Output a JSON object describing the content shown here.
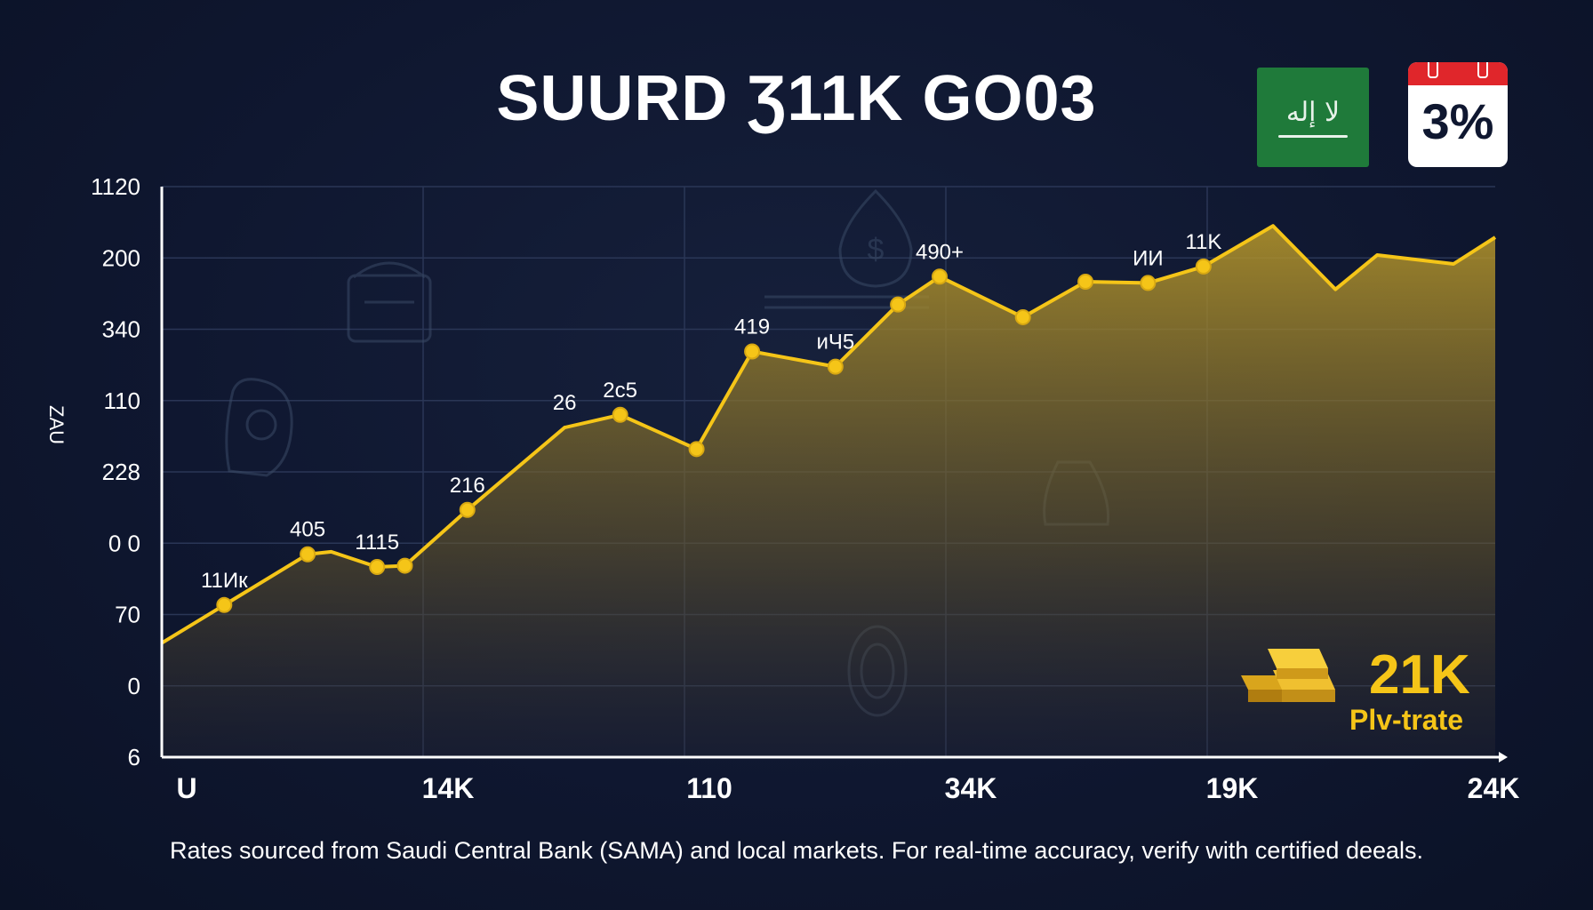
{
  "title": "SUURD Ʒ11K GO03",
  "calendar_text": "3%",
  "footnote": "Rates sourced from Saudi Central Bank (SAMA) and local markets. For real-time accuracy, verify with certified deeals.",
  "badge": {
    "value": "21K",
    "caption": "Plv-trate"
  },
  "colors": {
    "line": "#f5c518",
    "fill": "#c9a62a",
    "accent": "#f5c518",
    "background": "#0f1730"
  },
  "icons": [
    "saudi-flag-icon",
    "calendar-icon",
    "gold-bars-icon",
    "money-bag-icon",
    "building-icon",
    "hand-coin-icon"
  ],
  "chart_data": {
    "type": "area",
    "ylabel": "ZAU",
    "y_ticks": [
      "1120",
      "200",
      "340",
      "110",
      "228",
      "0 0",
      "70",
      "0",
      "6"
    ],
    "x_ticks": [
      "U",
      "14K",
      "110",
      "34K",
      "19K",
      "24K"
    ],
    "x": [
      0,
      0.45,
      1.05,
      1.22,
      1.55,
      1.75,
      2.2,
      2.9,
      3.3,
      3.85,
      4.25,
      4.85,
      5.3,
      5.6,
      6.2,
      6.65,
      7.1,
      7.5,
      8.0,
      8.45,
      8.75,
      9.3,
      9.6
    ],
    "values": [
      90,
      120,
      160,
      162,
      150,
      151,
      195,
      260,
      270,
      243,
      320,
      308,
      357,
      379,
      347,
      375,
      374,
      387,
      419,
      369,
      396,
      389,
      410
    ],
    "point_labels": [
      {
        "index": 1,
        "text": "11Ик"
      },
      {
        "index": 2,
        "text": "405"
      },
      {
        "index": 4,
        "text": "1115"
      },
      {
        "index": 6,
        "text": "216"
      },
      {
        "index": 7,
        "text": "26"
      },
      {
        "index": 8,
        "text": "2с5"
      },
      {
        "index": 10,
        "text": "419"
      },
      {
        "index": 11,
        "text": "иЧ5"
      },
      {
        "index": 13,
        "text": "490+"
      },
      {
        "index": 16,
        "text": "ИИ"
      },
      {
        "index": 17,
        "text": "11K"
      }
    ],
    "markers": [
      1,
      2,
      4,
      5,
      6,
      8,
      9,
      10,
      11,
      12,
      13,
      14,
      15,
      16,
      17
    ],
    "grid": true,
    "legend": "none"
  }
}
